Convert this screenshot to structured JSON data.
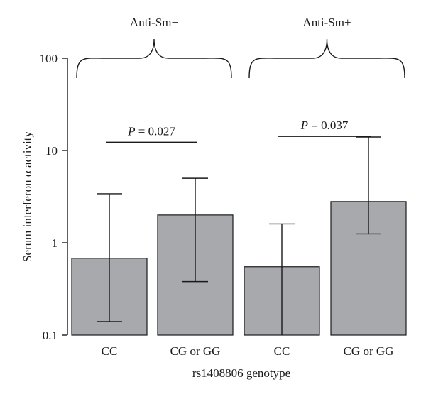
{
  "chart_data": {
    "type": "bar",
    "yscale": "log",
    "ylim": [
      0.1,
      100
    ],
    "ylabel": "Serum interferon α activity",
    "xlabel": "rs1408806 genotype",
    "yticks": [
      {
        "value": 0.1,
        "label": "0.1"
      },
      {
        "value": 1,
        "label": "1"
      },
      {
        "value": 10,
        "label": "10"
      },
      {
        "value": 100,
        "label": "100"
      }
    ],
    "categories": [
      "CC",
      "CG or GG",
      "CC",
      "CG or GG"
    ],
    "values": [
      0.68,
      2.0,
      0.55,
      2.8
    ],
    "error_low": [
      0.14,
      0.38,
      0.1,
      1.25
    ],
    "error_high": [
      3.4,
      5.0,
      1.6,
      14.0
    ],
    "colors": {
      "bar": "#a7a9ad",
      "line": "#1a1a1a"
    },
    "groups": [
      {
        "label": "Anti-Sm−",
        "bars": [
          0,
          1
        ]
      },
      {
        "label": "Anti-Sm+",
        "bars": [
          2,
          3
        ]
      }
    ],
    "annotations": [
      {
        "p_symbol": "P",
        "p_value": " = 0.027",
        "bars": [
          0,
          1
        ],
        "y": 12.3
      },
      {
        "p_symbol": "P",
        "p_value": " = 0.037",
        "bars": [
          2,
          3
        ],
        "y": 14.2
      }
    ]
  }
}
